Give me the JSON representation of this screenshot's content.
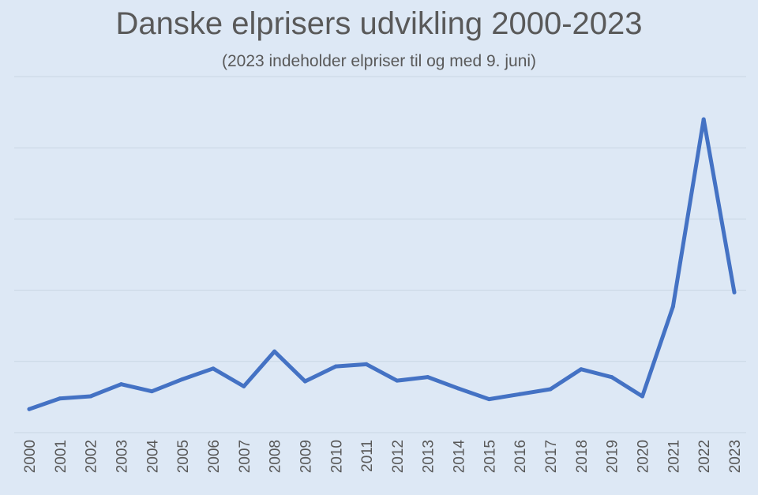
{
  "chart_data": {
    "type": "line",
    "title": "Danske elprisers udvikling 2000-2023",
    "subtitle": "(2023 indeholder elpriser til og med 9. juni)",
    "xlabel": "",
    "ylabel": "",
    "y_tick_labels_shown": false,
    "ylim": [
      0,
      5
    ],
    "grid": true,
    "categories": [
      "2000",
      "2001",
      "2002",
      "2003",
      "2004",
      "2005",
      "2006",
      "2007",
      "2008",
      "2009",
      "2010",
      "2011",
      "2012",
      "2013",
      "2014",
      "2015",
      "2016",
      "2017",
      "2018",
      "2019",
      "2020",
      "2021",
      "2022",
      "2023"
    ],
    "values": [
      0.33,
      0.48,
      0.51,
      0.68,
      0.58,
      0.75,
      0.9,
      0.65,
      1.14,
      0.72,
      0.93,
      0.96,
      0.73,
      0.78,
      0.62,
      0.47,
      0.54,
      0.61,
      0.89,
      0.78,
      0.51,
      1.77,
      4.4,
      1.97
    ],
    "line_color": "#4472c4",
    "background_color": "#dde8f5"
  }
}
